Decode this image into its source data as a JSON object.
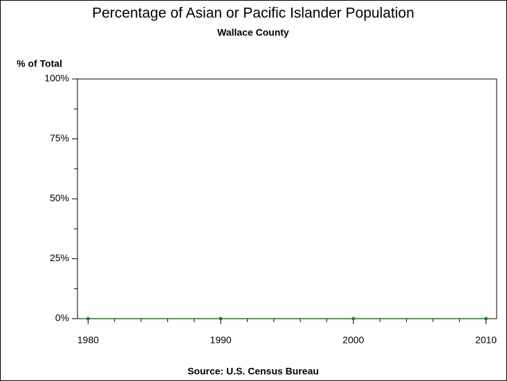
{
  "chart_data": {
    "type": "line",
    "title": "Percentage of Asian or Pacific Islander Population",
    "subtitle": "Wallace County",
    "y_label": "% of Total",
    "source": "Source: U.S. Census Bureau",
    "x": [
      1980,
      1990,
      2000,
      2010
    ],
    "series": [
      {
        "name": "Wallace County",
        "color": "#1f7a1f",
        "values": [
          0,
          0,
          0,
          0
        ]
      }
    ],
    "xlim": [
      1979.2,
      2010.8
    ],
    "xticks": [
      1980,
      1990,
      2000,
      2010
    ],
    "ylim": [
      0,
      100
    ],
    "yticks": [
      {
        "value": 0,
        "label": "0%"
      },
      {
        "value": 25,
        "label": "25%"
      },
      {
        "value": 50,
        "label": "50%"
      },
      {
        "value": 75,
        "label": "75%"
      },
      {
        "value": 100,
        "label": "100%"
      }
    ]
  }
}
